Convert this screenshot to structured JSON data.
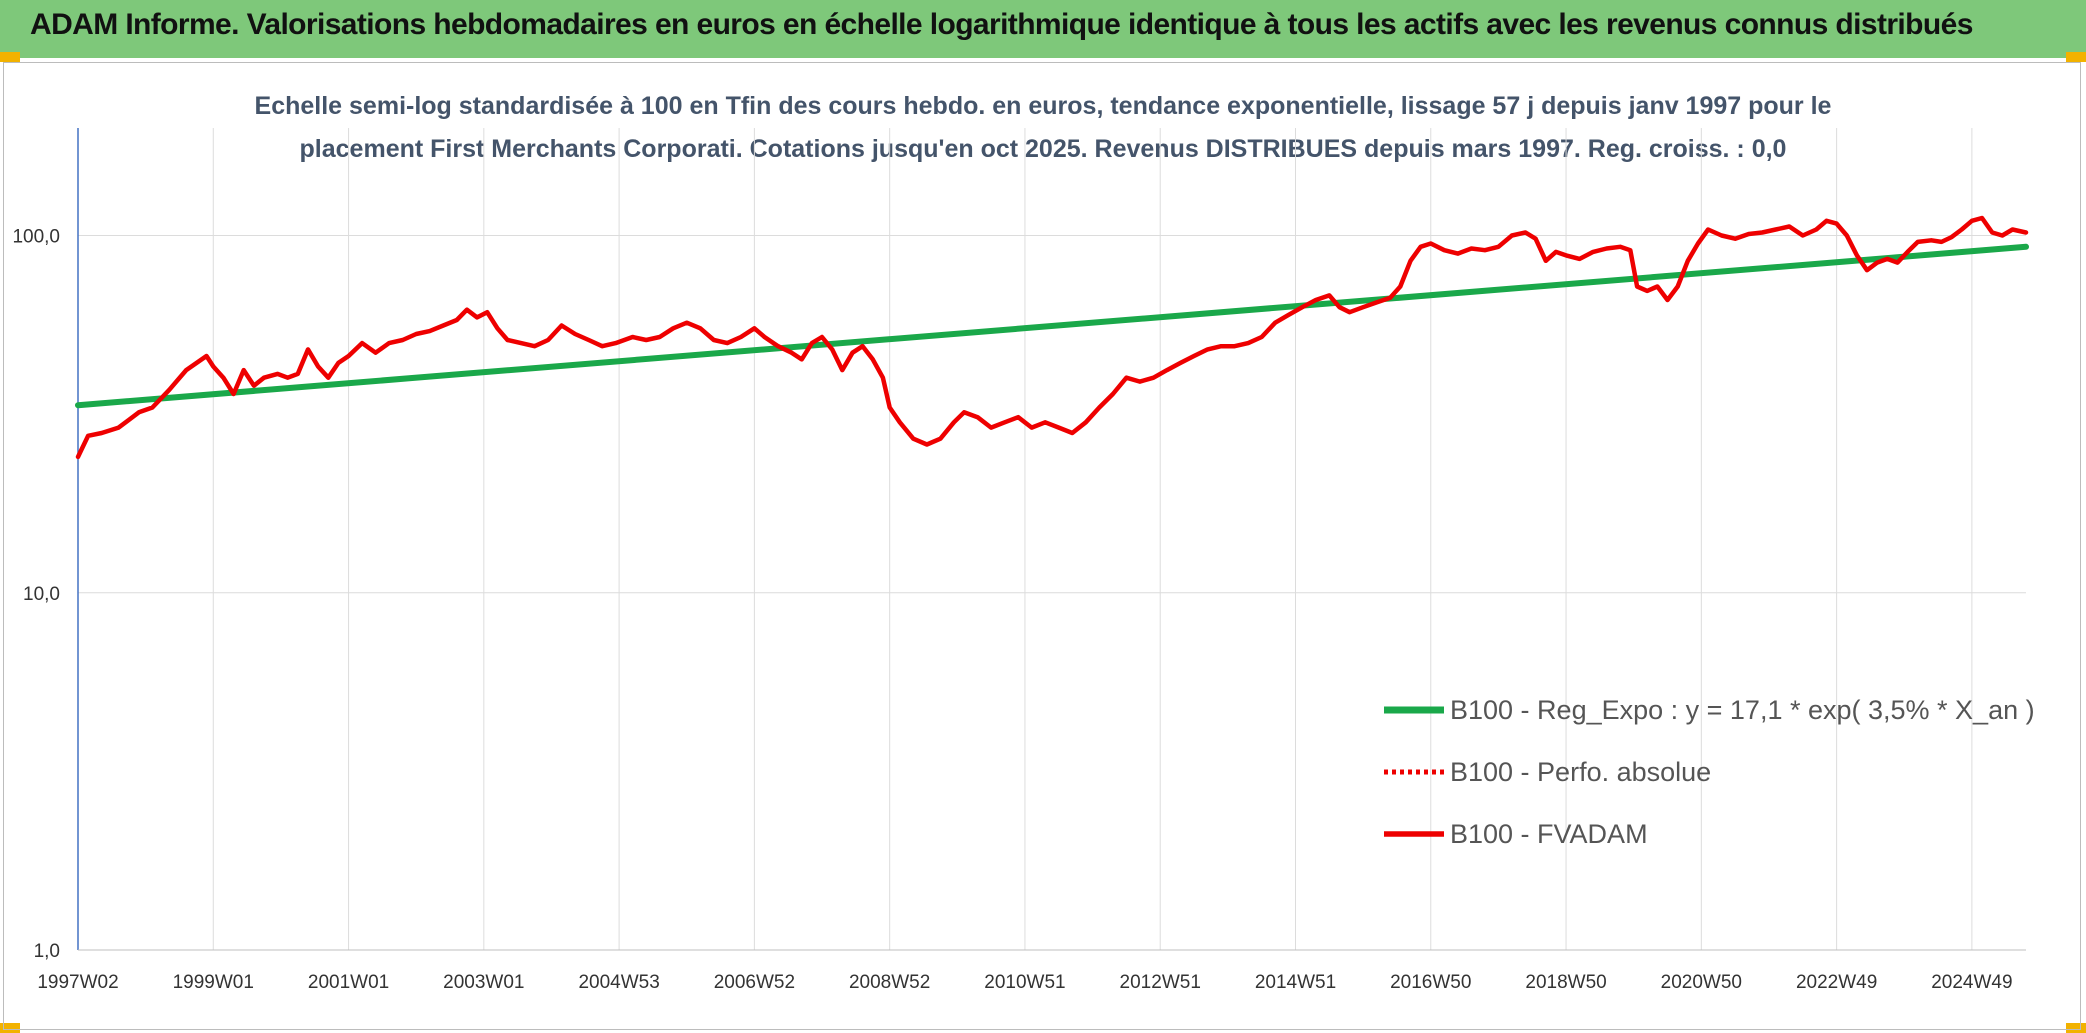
{
  "header": {
    "title": "ADAM Informe. Valorisations hebdomadaires en euros en échelle logarithmique identique à tous les actifs avec les revenus connus distribués"
  },
  "colors": {
    "header_bg": "#7ec87a",
    "corner": "#f2b200",
    "reg": "#1aa84a",
    "fvadam": "#ee0000",
    "perfo": "#ee0000"
  },
  "chart_data": {
    "type": "line",
    "scale": "log",
    "title_lines": [
      "Echelle semi-log standardisée à 100 en Tfin des cours hebdo. en euros, tendance exponentielle, lissage 57 j depuis janv 1997 pour le",
      "placement First Merchants Corporati. Cotations jusqu'en oct 2025. Revenus DISTRIBUES depuis mars 1997. Reg. croiss. : 0,0"
    ],
    "ylim": [
      1,
      200
    ],
    "y_ticks": [
      {
        "value": 1,
        "label": "1,0"
      },
      {
        "value": 10,
        "label": "10,0"
      },
      {
        "value": 100,
        "label": "100,0"
      }
    ],
    "xlim": [
      1997.0,
      2025.8
    ],
    "x_ticks": [
      {
        "value": 1997.0,
        "label": "1997W02"
      },
      {
        "value": 1999.0,
        "label": "1999W01"
      },
      {
        "value": 2001.0,
        "label": "2001W01"
      },
      {
        "value": 2003.0,
        "label": "2003W01"
      },
      {
        "value": 2005.0,
        "label": "2004W53"
      },
      {
        "value": 2007.0,
        "label": "2006W52"
      },
      {
        "value": 2009.0,
        "label": "2008W52"
      },
      {
        "value": 2011.0,
        "label": "2010W51"
      },
      {
        "value": 2013.0,
        "label": "2012W51"
      },
      {
        "value": 2015.0,
        "label": "2014W51"
      },
      {
        "value": 2017.0,
        "label": "2016W50"
      },
      {
        "value": 2019.0,
        "label": "2018W50"
      },
      {
        "value": 2021.0,
        "label": "2020W50"
      },
      {
        "value": 2023.0,
        "label": "2022W49"
      },
      {
        "value": 2025.0,
        "label": "2024W49"
      }
    ],
    "series": [
      {
        "name": "B100 - Reg_Expo : y = 17,1 * exp( 3,5% *  X_an )",
        "style": "solid-green",
        "points": [
          [
            1997.0,
            33.5
          ],
          [
            2025.8,
            93.0
          ]
        ]
      },
      {
        "name": "B100 - Perfo. absolue",
        "style": "dotted-red",
        "points": []
      },
      {
        "name": "B100 - FVADAM",
        "style": "solid-red",
        "points": [
          [
            1997.0,
            24
          ],
          [
            1997.15,
            27.5
          ],
          [
            1997.35,
            28
          ],
          [
            1997.6,
            29
          ],
          [
            1997.9,
            32
          ],
          [
            1998.1,
            33
          ],
          [
            1998.35,
            37
          ],
          [
            1998.6,
            42
          ],
          [
            1998.9,
            46
          ],
          [
            1999.0,
            43
          ],
          [
            1999.15,
            40
          ],
          [
            1999.3,
            36
          ],
          [
            1999.45,
            42
          ],
          [
            1999.6,
            38
          ],
          [
            1999.75,
            40
          ],
          [
            1999.95,
            41
          ],
          [
            2000.1,
            40
          ],
          [
            2000.25,
            41
          ],
          [
            2000.4,
            48
          ],
          [
            2000.55,
            43
          ],
          [
            2000.7,
            40
          ],
          [
            2000.85,
            44
          ],
          [
            2001.0,
            46
          ],
          [
            2001.2,
            50
          ],
          [
            2001.4,
            47
          ],
          [
            2001.6,
            50
          ],
          [
            2001.8,
            51
          ],
          [
            2002.0,
            53
          ],
          [
            2002.2,
            54
          ],
          [
            2002.4,
            56
          ],
          [
            2002.6,
            58
          ],
          [
            2002.75,
            62
          ],
          [
            2002.9,
            59
          ],
          [
            2003.05,
            61
          ],
          [
            2003.2,
            55
          ],
          [
            2003.35,
            51
          ],
          [
            2003.55,
            50
          ],
          [
            2003.75,
            49
          ],
          [
            2003.95,
            51
          ],
          [
            2004.15,
            56
          ],
          [
            2004.35,
            53
          ],
          [
            2004.55,
            51
          ],
          [
            2004.75,
            49
          ],
          [
            2004.95,
            50
          ],
          [
            2005.2,
            52
          ],
          [
            2005.4,
            51
          ],
          [
            2005.6,
            52
          ],
          [
            2005.8,
            55
          ],
          [
            2006.0,
            57
          ],
          [
            2006.2,
            55
          ],
          [
            2006.4,
            51
          ],
          [
            2006.6,
            50
          ],
          [
            2006.8,
            52
          ],
          [
            2007.0,
            55
          ],
          [
            2007.15,
            52
          ],
          [
            2007.35,
            49
          ],
          [
            2007.55,
            47
          ],
          [
            2007.7,
            45
          ],
          [
            2007.85,
            50
          ],
          [
            2008.0,
            52
          ],
          [
            2008.15,
            48
          ],
          [
            2008.3,
            42
          ],
          [
            2008.45,
            47
          ],
          [
            2008.6,
            49
          ],
          [
            2008.75,
            45
          ],
          [
            2008.9,
            40
          ],
          [
            2009.0,
            33
          ],
          [
            2009.15,
            30
          ],
          [
            2009.35,
            27
          ],
          [
            2009.55,
            26
          ],
          [
            2009.75,
            27
          ],
          [
            2009.95,
            30
          ],
          [
            2010.1,
            32
          ],
          [
            2010.3,
            31
          ],
          [
            2010.5,
            29
          ],
          [
            2010.7,
            30
          ],
          [
            2010.9,
            31
          ],
          [
            2011.1,
            29
          ],
          [
            2011.3,
            30
          ],
          [
            2011.5,
            29
          ],
          [
            2011.7,
            28
          ],
          [
            2011.9,
            30
          ],
          [
            2012.1,
            33
          ],
          [
            2012.3,
            36
          ],
          [
            2012.5,
            40
          ],
          [
            2012.7,
            39
          ],
          [
            2012.9,
            40
          ],
          [
            2013.1,
            42
          ],
          [
            2013.3,
            44
          ],
          [
            2013.5,
            46
          ],
          [
            2013.7,
            48
          ],
          [
            2013.9,
            49
          ],
          [
            2014.1,
            49
          ],
          [
            2014.3,
            50
          ],
          [
            2014.5,
            52
          ],
          [
            2014.7,
            57
          ],
          [
            2014.9,
            60
          ],
          [
            2015.1,
            63
          ],
          [
            2015.3,
            66
          ],
          [
            2015.5,
            68
          ],
          [
            2015.65,
            63
          ],
          [
            2015.8,
            61
          ],
          [
            2016.0,
            63
          ],
          [
            2016.2,
            65
          ],
          [
            2016.4,
            67
          ],
          [
            2016.55,
            72
          ],
          [
            2016.7,
            85
          ],
          [
            2016.85,
            93
          ],
          [
            2017.0,
            95
          ],
          [
            2017.2,
            91
          ],
          [
            2017.4,
            89
          ],
          [
            2017.6,
            92
          ],
          [
            2017.8,
            91
          ],
          [
            2018.0,
            93
          ],
          [
            2018.2,
            100
          ],
          [
            2018.4,
            102
          ],
          [
            2018.55,
            98
          ],
          [
            2018.7,
            85
          ],
          [
            2018.85,
            90
          ],
          [
            2019.0,
            88
          ],
          [
            2019.2,
            86
          ],
          [
            2019.4,
            90
          ],
          [
            2019.6,
            92
          ],
          [
            2019.8,
            93
          ],
          [
            2019.95,
            91
          ],
          [
            2020.05,
            72
          ],
          [
            2020.2,
            70
          ],
          [
            2020.35,
            72
          ],
          [
            2020.5,
            66
          ],
          [
            2020.65,
            72
          ],
          [
            2020.8,
            85
          ],
          [
            2020.95,
            95
          ],
          [
            2021.1,
            104
          ],
          [
            2021.3,
            100
          ],
          [
            2021.5,
            98
          ],
          [
            2021.7,
            101
          ],
          [
            2021.9,
            102
          ],
          [
            2022.1,
            104
          ],
          [
            2022.3,
            106
          ],
          [
            2022.5,
            100
          ],
          [
            2022.7,
            104
          ],
          [
            2022.85,
            110
          ],
          [
            2023.0,
            108
          ],
          [
            2023.15,
            100
          ],
          [
            2023.3,
            88
          ],
          [
            2023.45,
            80
          ],
          [
            2023.6,
            84
          ],
          [
            2023.75,
            86
          ],
          [
            2023.9,
            84
          ],
          [
            2024.05,
            90
          ],
          [
            2024.2,
            96
          ],
          [
            2024.4,
            97
          ],
          [
            2024.55,
            96
          ],
          [
            2024.7,
            99
          ],
          [
            2024.85,
            104
          ],
          [
            2025.0,
            110
          ],
          [
            2025.15,
            112
          ],
          [
            2025.3,
            102
          ],
          [
            2025.45,
            100
          ],
          [
            2025.6,
            104
          ],
          [
            2025.8,
            102
          ]
        ]
      }
    ],
    "legend": [
      {
        "label": "B100 - Reg_Expo : y = 17,1 * exp( 3,5% *  X_an )",
        "style": "solid-green"
      },
      {
        "label": "B100 - Perfo. absolue",
        "style": "dotted-red"
      },
      {
        "label": "B100 - FVADAM",
        "style": "solid-red"
      }
    ],
    "legend_position": "bottom-right",
    "grid": true
  }
}
